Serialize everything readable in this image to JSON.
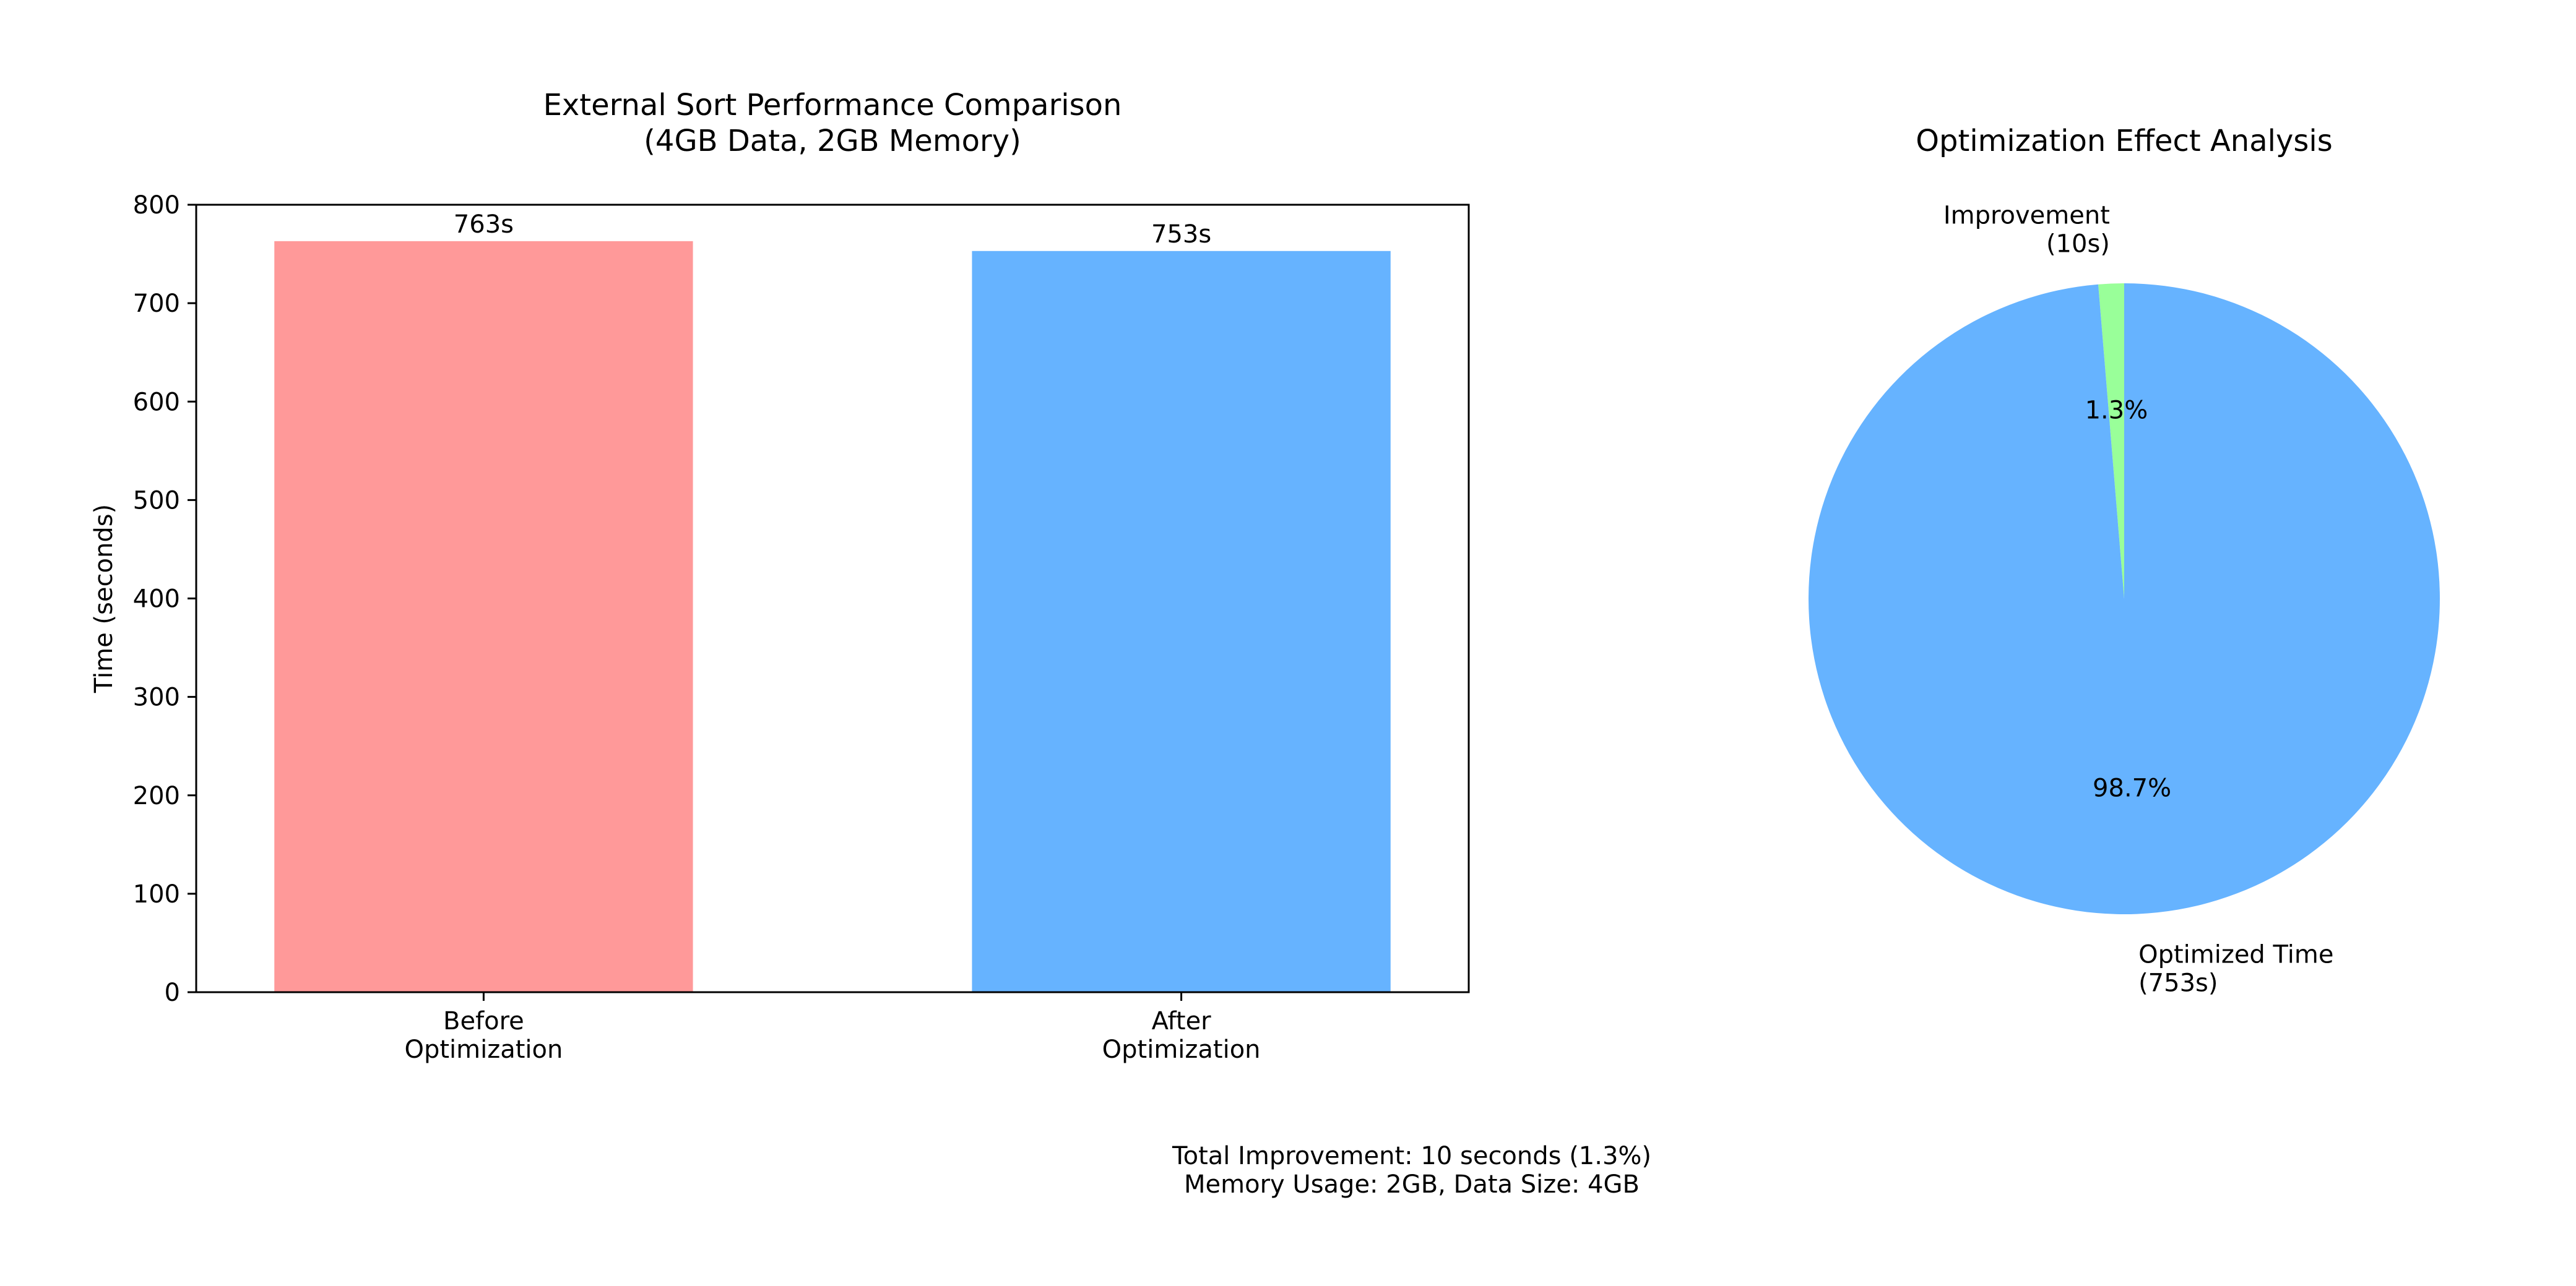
{
  "chart_data": [
    {
      "type": "bar",
      "title": "External Sort Performance Comparison\n(4GB Data, 2GB Memory)",
      "xlabel": "",
      "ylabel": "Time (seconds)",
      "categories": [
        "Before\nOptimization",
        "After\nOptimization"
      ],
      "values": [
        763,
        753
      ],
      "data_labels": [
        "763s",
        "753s"
      ],
      "colors": [
        "#ff9999",
        "#66b3ff"
      ],
      "ylim": [
        0,
        800
      ],
      "yticks": [
        0,
        100,
        200,
        300,
        400,
        500,
        600,
        700,
        800
      ],
      "grid": false
    },
    {
      "type": "pie",
      "title": "Optimization Effect Analysis",
      "slices": [
        {
          "label": "Improvement\n(10s)",
          "value": 10,
          "pct_label": "1.3%",
          "color": "#99ff99"
        },
        {
          "label": "Optimized Time\n(753s)",
          "value": 753,
          "pct_label": "98.7%",
          "color": "#66b3ff"
        }
      ]
    }
  ],
  "footer": {
    "line1": "Total Improvement: 10 seconds (1.3%)",
    "line2": "Memory Usage: 2GB, Data Size: 4GB"
  }
}
